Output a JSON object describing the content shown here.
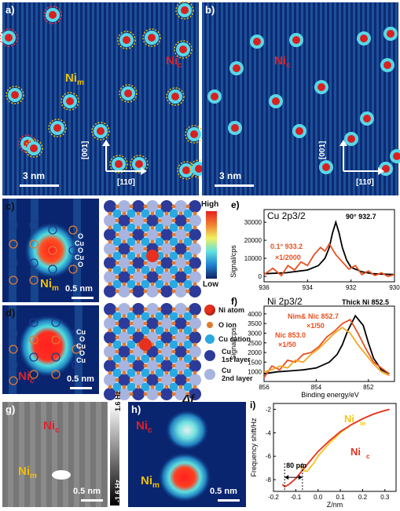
{
  "panels": {
    "a": {
      "label": "a)",
      "scale": "3 nm",
      "axis_v": "[001]",
      "axis_h": "[110̄]",
      "ni_m": "Ni",
      "ni_m_sub": "m",
      "ni_c": "Ni",
      "ni_c_sub": "c"
    },
    "b": {
      "label": "b)",
      "scale": "3 nm",
      "axis_v": "[001]",
      "axis_h": "[110̄]",
      "ni_c": "Ni",
      "ni_c_sub": "c"
    },
    "c": {
      "label": "c)",
      "scale": "0.5 nm",
      "ni": "Ni",
      "ni_sub": "m",
      "side_labels": [
        "O",
        "Cu",
        "O",
        "Cu",
        "O"
      ]
    },
    "d": {
      "label": "d)",
      "scale": "0.5 nm",
      "ni": "Ni",
      "ni_sub": "c",
      "side_labels": [
        "Cu",
        "O",
        "Cu",
        "O",
        "Cu"
      ]
    },
    "g": {
      "label": "g)",
      "scale": "0.5 nm",
      "ni_c": "Ni",
      "ni_c_sub": "c",
      "ni_m": "Ni",
      "ni_m_sub": "m",
      "colorbar_top": "1.6 Hz",
      "colorbar_bottom": "-1.6 Hz"
    },
    "h": {
      "label": "h)",
      "scale": "0.5 nm",
      "ni_c": "Ni",
      "ni_c_sub": "c",
      "ni_m": "Ni",
      "ni_m_sub": "m"
    }
  },
  "colorbar": {
    "high": "High",
    "low": "Low"
  },
  "delta_f": "Δf",
  "legend": {
    "ni_atom": "Ni atom",
    "o_ion": "O ion",
    "cu_cation": "Cu cation",
    "cu_1st": "Cu",
    "cu_1st_sub": "1st layer",
    "cu_2nd": "Cu",
    "cu_2nd_sub": "2nd layer"
  },
  "colors": {
    "ni": "#e8301f",
    "o": "#e07a30",
    "cu_cation": "#2aa8e0",
    "cu_1st": "#2c3a9a",
    "cu_2nd": "#a8b4e0"
  },
  "chart_data": [
    {
      "id": "e",
      "type": "line",
      "label": "e)",
      "title": "Cu 2p3/2",
      "ylabel": "Signal/cps",
      "xlabel": "",
      "xlim": [
        936,
        930
      ],
      "ylim": [
        -3000,
        37000
      ],
      "yticks": [
        0,
        10000,
        20000,
        30000
      ],
      "xticks": [
        936,
        934,
        932,
        930
      ],
      "series": [
        {
          "name": "90° 932.7",
          "color": "#000000",
          "x": [
            936,
            935,
            934,
            933.5,
            933.2,
            933.0,
            932.85,
            932.7,
            932.55,
            932.4,
            932.2,
            932,
            931.5,
            931,
            930
          ],
          "y": [
            1500,
            2000,
            3500,
            6000,
            10000,
            16000,
            24000,
            30000,
            24000,
            16000,
            9000,
            5000,
            2500,
            1500,
            1000
          ]
        },
        {
          "name": "0.1° 933.2 ×1/2000",
          "color": "#e8501f",
          "x": [
            936,
            935.6,
            935.2,
            934.9,
            934.6,
            934.3,
            934,
            933.7,
            933.4,
            933.2,
            933,
            932.7,
            932.4,
            932.1,
            931.8,
            931.5,
            931.2,
            930.9,
            930.6,
            930.3,
            930
          ],
          "y": [
            1000,
            4500,
            500,
            6000,
            3500,
            8000,
            6000,
            12000,
            16000,
            14000,
            18000,
            12000,
            8000,
            4000,
            6000,
            1000,
            3000,
            500,
            2000,
            0,
            1000
          ]
        }
      ],
      "annotations": [
        "90° 932.7",
        "0.1° 933.2",
        "×1/2000"
      ]
    },
    {
      "id": "f",
      "type": "line",
      "label": "f)",
      "title": "Ni 2p3/2",
      "ylabel": "Signal/cps",
      "xlabel": "Binding energy/eV",
      "xlim": [
        856,
        851
      ],
      "ylim": [
        500,
        4400
      ],
      "yticks": [
        1000,
        1500,
        2000,
        2500,
        3000,
        3500,
        4000
      ],
      "xticks": [
        856,
        854,
        852
      ],
      "series": [
        {
          "name": "Thick Ni 852.5",
          "color": "#000000",
          "x": [
            856,
            855.5,
            855,
            854.5,
            854,
            853.5,
            853.2,
            853,
            852.8,
            852.5,
            852.2,
            852,
            851.8,
            851.5,
            851.2
          ],
          "y": [
            900,
            1000,
            1050,
            1100,
            1200,
            1500,
            1900,
            2400,
            3100,
            3900,
            3400,
            2500,
            1700,
            1100,
            900
          ]
        },
        {
          "name": "Nim& Nic 852.7 ×1/50",
          "color": "#e8501f",
          "x": [
            856,
            855.7,
            855.4,
            855.1,
            854.8,
            854.5,
            854.2,
            853.9,
            853.6,
            853.3,
            853,
            852.7,
            852.4,
            852.1,
            851.8,
            851.5,
            851.2
          ],
          "y": [
            700,
            1300,
            1100,
            1600,
            1500,
            1900,
            2000,
            2300,
            2800,
            3100,
            3500,
            3700,
            3000,
            2200,
            1500,
            1200,
            900
          ]
        },
        {
          "name": "Nic 853.0 ×1/50",
          "color": "#f5a623",
          "x": [
            856,
            855.7,
            855.4,
            855.1,
            854.8,
            854.5,
            854.2,
            853.9,
            853.6,
            853.3,
            853,
            852.7,
            852.4,
            852.1,
            851.8,
            851.5,
            851.2
          ],
          "y": [
            1000,
            1100,
            1300,
            1200,
            1600,
            1500,
            1900,
            2200,
            2600,
            3000,
            3300,
            3000,
            2400,
            1900,
            1400,
            1000,
            800
          ]
        }
      ],
      "annotations": [
        "Thick Ni 852.5",
        "Nim& Nic 852.7",
        "×1/50",
        "Nic 853.0",
        "×1/50"
      ]
    },
    {
      "id": "i",
      "type": "line",
      "label": "i)",
      "title": "",
      "ylabel": "Frequency shift/Hz",
      "xlabel": "Z/nm",
      "xlim": [
        -0.2,
        0.35
      ],
      "ylim": [
        -9,
        -1.5
      ],
      "yticks": [
        -2,
        -4,
        -6,
        -8
      ],
      "xticks": [
        -0.2,
        -0.1,
        0.0,
        0.1,
        0.2,
        0.3
      ],
      "series": [
        {
          "name": "Nim",
          "color": "#f5c518",
          "x": [
            -0.08,
            -0.07,
            -0.05,
            -0.02,
            0.0,
            0.05,
            0.1,
            0.15,
            0.2,
            0.25,
            0.3,
            0.32
          ],
          "y": [
            -6.8,
            -7.2,
            -7.3,
            -6.6,
            -6.0,
            -4.9,
            -4.0,
            -3.3,
            -2.8,
            -2.4,
            -2.1,
            -2.0
          ]
        },
        {
          "name": "Nic",
          "color": "#e8301f",
          "x": [
            -0.16,
            -0.15,
            -0.13,
            -0.1,
            -0.07,
            -0.04,
            0.0,
            0.05,
            0.1,
            0.15,
            0.2,
            0.25,
            0.3,
            0.32
          ],
          "y": [
            -8.4,
            -8.6,
            -8.4,
            -7.9,
            -7.2,
            -6.5,
            -5.6,
            -4.7,
            -3.9,
            -3.3,
            -2.8,
            -2.4,
            -2.1,
            -2.0
          ]
        }
      ],
      "annotations": [
        "80 pm",
        "Ni",
        "m",
        "Ni",
        "c"
      ]
    }
  ]
}
